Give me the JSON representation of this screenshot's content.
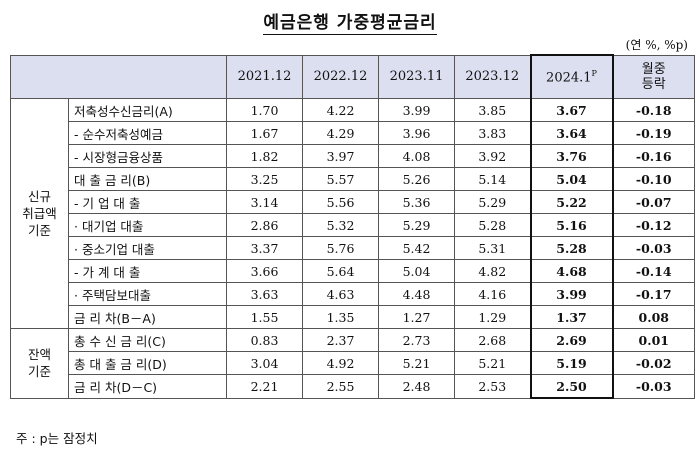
{
  "title": "예금은행 가중평균금리",
  "unit": "(연 %, %p)",
  "header": {
    "cols": [
      "2021.12",
      "2022.12",
      "2023.11",
      "2023.12"
    ],
    "current": "2024.1",
    "current_sup": "P",
    "change_l1": "월중",
    "change_l2": "등락"
  },
  "groups": {
    "new": [
      "신규",
      "취급액",
      "기준"
    ],
    "bal": [
      "잔액",
      "기준"
    ]
  },
  "rows": [
    {
      "label": "저축성수신금리(A)",
      "v": [
        "1.70",
        "4.22",
        "3.99",
        "3.85"
      ],
      "cur": "3.67",
      "chg": "-0.18"
    },
    {
      "label": "- 순수저축성예금",
      "v": [
        "1.67",
        "4.29",
        "3.96",
        "3.83"
      ],
      "cur": "3.64",
      "chg": "-0.19"
    },
    {
      "label": "- 시장형금융상품",
      "v": [
        "1.82",
        "3.97",
        "4.08",
        "3.92"
      ],
      "cur": "3.76",
      "chg": "-0.16"
    },
    {
      "label": "대 출 금 리(B)",
      "v": [
        "3.25",
        "5.57",
        "5.26",
        "5.14"
      ],
      "cur": "5.04",
      "chg": "-0.10"
    },
    {
      "label": "- 기 업 대 출",
      "v": [
        "3.14",
        "5.56",
        "5.36",
        "5.29"
      ],
      "cur": "5.22",
      "chg": "-0.07"
    },
    {
      "label": "· 대기업 대출",
      "v": [
        "2.86",
        "5.32",
        "5.29",
        "5.28"
      ],
      "cur": "5.16",
      "chg": "-0.12"
    },
    {
      "label": "· 중소기업 대출",
      "v": [
        "3.37",
        "5.76",
        "5.42",
        "5.31"
      ],
      "cur": "5.28",
      "chg": "-0.03"
    },
    {
      "label": "- 가 계 대 출",
      "v": [
        "3.66",
        "5.64",
        "5.04",
        "4.82"
      ],
      "cur": "4.68",
      "chg": "-0.14"
    },
    {
      "label": "· 주택담보대출",
      "v": [
        "3.63",
        "4.63",
        "4.48",
        "4.16"
      ],
      "cur": "3.99",
      "chg": "-0.17"
    },
    {
      "label": "금 리 차(B－A)",
      "v": [
        "1.55",
        "1.35",
        "1.27",
        "1.29"
      ],
      "cur": "1.37",
      "chg": "0.08"
    },
    {
      "label": "총 수 신 금 리(C)",
      "v": [
        "0.83",
        "2.37",
        "2.73",
        "2.68"
      ],
      "cur": "2.69",
      "chg": "0.01"
    },
    {
      "label": "총 대 출 금 리(D)",
      "v": [
        "3.04",
        "4.92",
        "5.21",
        "5.21"
      ],
      "cur": "5.19",
      "chg": "-0.02"
    },
    {
      "label": "금 리 차(D－C)",
      "v": [
        "2.21",
        "2.55",
        "2.48",
        "2.53"
      ],
      "cur": "2.50",
      "chg": "-0.03"
    }
  ],
  "note": "주 : p는 잠정치"
}
